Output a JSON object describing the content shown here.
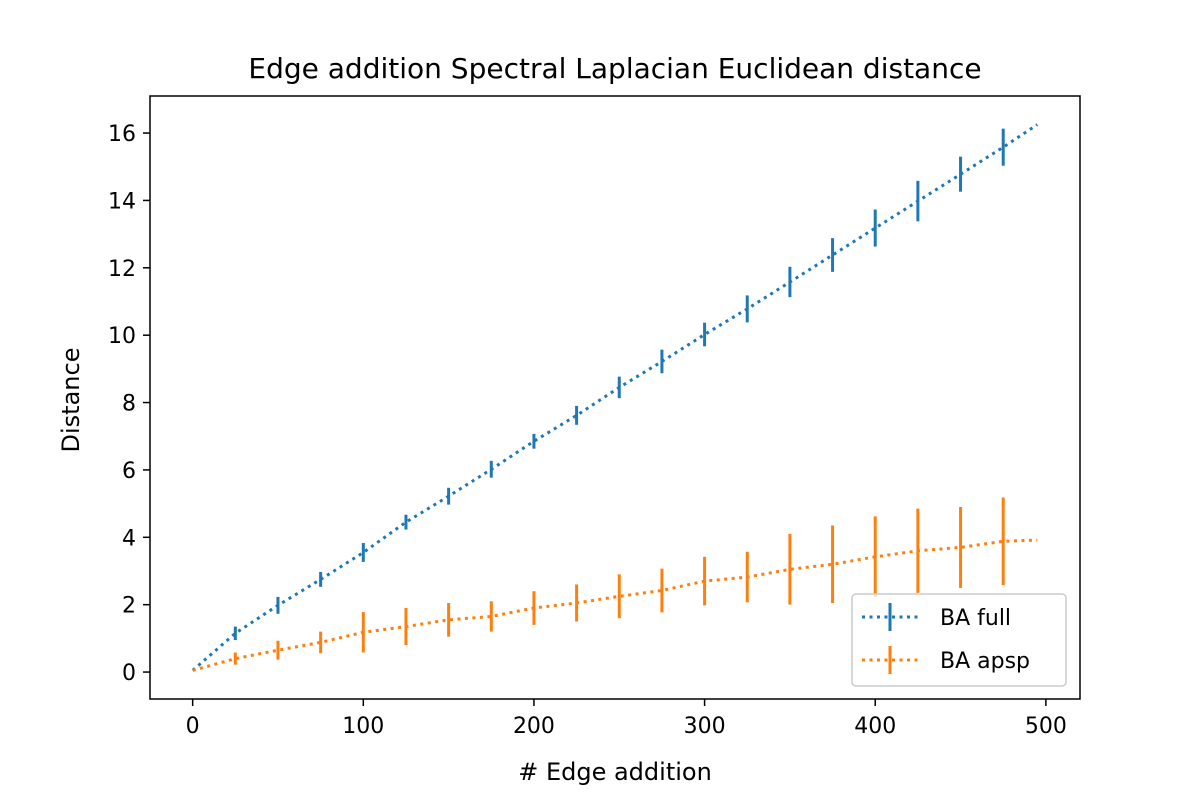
{
  "chart_data": {
    "type": "line",
    "title": "Edge addition Spectral Laplacian Euclidean distance",
    "xlabel": "# Edge addition",
    "ylabel": "Distance",
    "xlim": [
      -25,
      520
    ],
    "ylim": [
      -0.8,
      17.1
    ],
    "xticks": [
      0,
      100,
      200,
      300,
      400,
      500
    ],
    "yticks": [
      0,
      2,
      4,
      6,
      8,
      10,
      12,
      14,
      16
    ],
    "grid": false,
    "legend_position": "lower-right",
    "errorbar_x": [
      25,
      50,
      75,
      100,
      125,
      150,
      175,
      200,
      225,
      250,
      275,
      300,
      325,
      350,
      375,
      400,
      425,
      450,
      475
    ],
    "series": [
      {
        "name": "BA full",
        "color": "#1f77b4",
        "line_style": "dotted",
        "x": [
          0,
          25,
          50,
          75,
          100,
          125,
          150,
          175,
          200,
          225,
          250,
          275,
          300,
          325,
          350,
          375,
          400,
          425,
          450,
          475,
          495
        ],
        "y": [
          0.05,
          1.15,
          1.98,
          2.75,
          3.55,
          4.45,
          5.22,
          6.02,
          6.85,
          7.62,
          8.45,
          9.22,
          10.02,
          10.78,
          11.58,
          12.38,
          13.18,
          13.98,
          14.78,
          15.58,
          16.25
        ],
        "err_y": [
          0.2,
          0.25,
          0.22,
          0.28,
          0.22,
          0.25,
          0.25,
          0.22,
          0.28,
          0.32,
          0.35,
          0.35,
          0.4,
          0.45,
          0.5,
          0.55,
          0.6,
          0.52,
          0.55
        ]
      },
      {
        "name": "BA apsp",
        "color": "#ff7f0e",
        "line_style": "dotted",
        "x": [
          0,
          25,
          50,
          75,
          100,
          125,
          150,
          175,
          200,
          225,
          250,
          275,
          300,
          325,
          350,
          375,
          400,
          425,
          450,
          475,
          495
        ],
        "y": [
          0.05,
          0.4,
          0.65,
          0.88,
          1.18,
          1.35,
          1.55,
          1.65,
          1.9,
          2.05,
          2.25,
          2.42,
          2.7,
          2.82,
          3.05,
          3.2,
          3.42,
          3.6,
          3.7,
          3.88,
          3.92
        ],
        "err_y": [
          0.18,
          0.28,
          0.32,
          0.6,
          0.55,
          0.5,
          0.45,
          0.5,
          0.55,
          0.65,
          0.65,
          0.72,
          0.75,
          1.05,
          1.15,
          1.2,
          1.25,
          1.2,
          1.3
        ]
      }
    ]
  }
}
